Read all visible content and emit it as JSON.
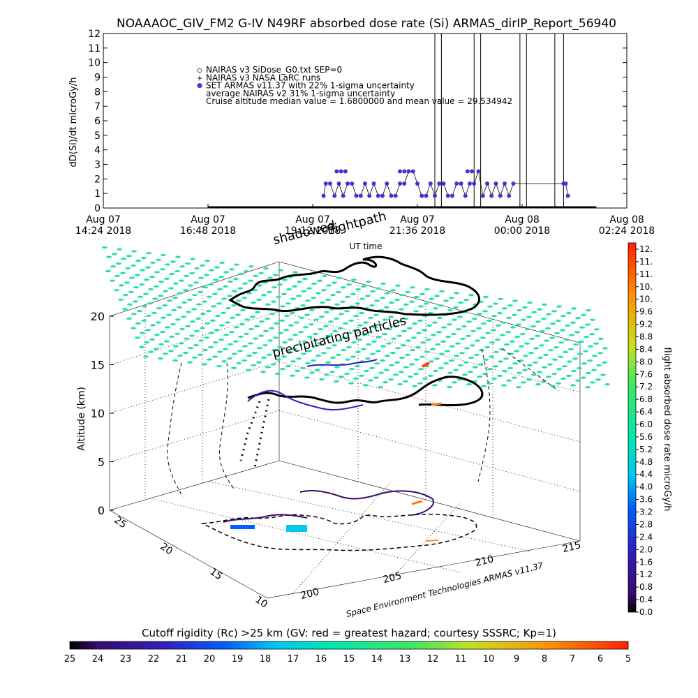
{
  "title": "NOAAAOC_GIV_FM2 G-IV   N49RF  absorbed dose rate (Si) ARMAS_dirIP_Report_56940",
  "colors": {
    "series_armas": "#4b2fd6",
    "cmap_stops": [
      "#000000",
      "#3a0a6e",
      "#3020c0",
      "#0060ff",
      "#00c8f0",
      "#00e8b0",
      "#40e860",
      "#c8e020",
      "#ff9000",
      "#ff2000"
    ]
  },
  "chart_data": [
    {
      "type": "line",
      "title": "NOAAAOC_GIV_FM2 G-IV   N49RF  absorbed dose rate (Si) ARMAS_dirIP_Report_56940",
      "ylabel": "dD(Si)/dt microGy/h",
      "xlabel": "UT time",
      "ylim": [
        0,
        12
      ],
      "yticks": [
        "0",
        "1",
        "2",
        "3",
        "4",
        "5",
        "6",
        "7",
        "8",
        "9",
        "10",
        "11",
        "12"
      ],
      "xtick_labels": [
        [
          "Aug 07",
          "14:24 2018"
        ],
        [
          "Aug 07",
          "16:48 2018"
        ],
        [
          "Aug 07",
          "19:12 2018"
        ],
        [
          "Aug 07",
          "21:36 2018"
        ],
        [
          "Aug 08",
          "00:00 2018"
        ],
        [
          "Aug 08",
          "02:24 2018"
        ]
      ],
      "xlim_hours": [
        0,
        12
      ],
      "legend": [
        {
          "symbol": "◇",
          "text": "NAIRAS v3 SiDose_G0.txt SEP=0"
        },
        {
          "symbol": "+",
          "text": "NAIRAS v3 NASA LaRC runs"
        },
        {
          "symbol": "●",
          "text": "SET ARMAS v11.37 with 22% 1-sigma uncertainty"
        },
        {
          "symbol": "",
          "text": "average NAIRAS v2 31% 1-sigma uncertainty"
        },
        {
          "symbol": "",
          "text": "Cruise altitude median value = 1.6800000 and mean value = 29.534942"
        }
      ],
      "legend_placement": "top-left",
      "series": [
        {
          "name": "SET ARMAS v11.37",
          "x": [
            5.05,
            5.1,
            5.2,
            5.3,
            5.4,
            5.5,
            5.6,
            5.7,
            5.8,
            5.9,
            6.0,
            6.1,
            6.2,
            6.3,
            6.4,
            6.5,
            6.6,
            6.7,
            6.8,
            6.9,
            7.0,
            7.1,
            7.2,
            7.3,
            7.4,
            7.5,
            7.6,
            7.7,
            7.8,
            7.9,
            8.0,
            8.1,
            8.2,
            8.3,
            8.4,
            8.5,
            8.6,
            8.7,
            8.8,
            8.9,
            9.0,
            9.1,
            9.2,
            9.3,
            9.4,
            10.55,
            10.6,
            10.65
          ],
          "y": [
            0.84,
            1.68,
            1.68,
            0.84,
            1.68,
            0.84,
            1.68,
            1.68,
            0.84,
            0.84,
            1.68,
            0.84,
            1.68,
            0.84,
            0.84,
            1.68,
            0.84,
            0.84,
            1.68,
            1.68,
            2.52,
            2.52,
            1.68,
            0.84,
            0.84,
            1.68,
            0.84,
            1.68,
            1.68,
            0.84,
            0.84,
            1.68,
            1.68,
            0.84,
            1.68,
            1.68,
            2.52,
            0.84,
            1.68,
            0.84,
            1.68,
            0.84,
            1.68,
            0.84,
            1.68,
            1.68,
            1.68,
            0.84
          ],
          "y_extra": [
            {
              "x": 5.35,
              "y": 2.52
            },
            {
              "x": 5.45,
              "y": 2.52
            },
            {
              "x": 5.55,
              "y": 2.52
            },
            {
              "x": 6.8,
              "y": 2.52
            },
            {
              "x": 6.9,
              "y": 2.52
            },
            {
              "x": 7.0,
              "y": 2.52
            },
            {
              "x": 8.35,
              "y": 2.52
            },
            {
              "x": 8.45,
              "y": 2.52
            }
          ],
          "spikes_x": [
            7.6,
            7.75,
            8.5,
            8.65,
            9.55,
            9.7,
            10.35,
            10.55
          ]
        },
        {
          "name": "NAIRAS v3 NASA LaRC runs",
          "x_start": 2.4,
          "x_end": 11.3,
          "y": 0.05
        }
      ]
    },
    {
      "type": "scatter",
      "annotations": [
        "shadowed",
        "flightpath",
        "precipitating particles"
      ],
      "zlabel": "Altitude (km)",
      "zlim": [
        0,
        20
      ],
      "zticks": [
        "0",
        "5",
        "10",
        "15",
        "20"
      ],
      "lat_ticks": [
        "10",
        "15",
        "20",
        "25"
      ],
      "lon_ticks": [
        "200",
        "205",
        "210",
        "215"
      ],
      "credit": "Space Environment Technologies ARMAS v11.37"
    },
    {
      "type": "heatmap",
      "colorbar_label": "flight absorbed dose rate microGy/h",
      "ticks": [
        "0.0",
        "0.4",
        "0.8",
        "1.2",
        "1.6",
        "2.0",
        "2.4",
        "2.8",
        "3.2",
        "3.6",
        "4.0",
        "4.4",
        "4.8",
        "5.2",
        "5.6",
        "6.0",
        "6.4",
        "6.8",
        "7.2",
        "7.6",
        "8.0",
        "8.4",
        "8.8",
        "9.2",
        "9.6",
        "10.",
        "10.",
        "11.",
        "11.",
        "12."
      ]
    },
    {
      "type": "heatmap",
      "colorbar_label": "Cutoff rigidity (Rc) >25 km (GV: red = greatest hazard; courtesy SSSRC; Kp=1)",
      "ticks": [
        "25",
        "24",
        "23",
        "22",
        "21",
        "20",
        "19",
        "18",
        "17",
        "16",
        "15",
        "14",
        "13",
        "12",
        "11",
        "10",
        "9",
        "8",
        "7",
        "6",
        "5"
      ]
    }
  ]
}
